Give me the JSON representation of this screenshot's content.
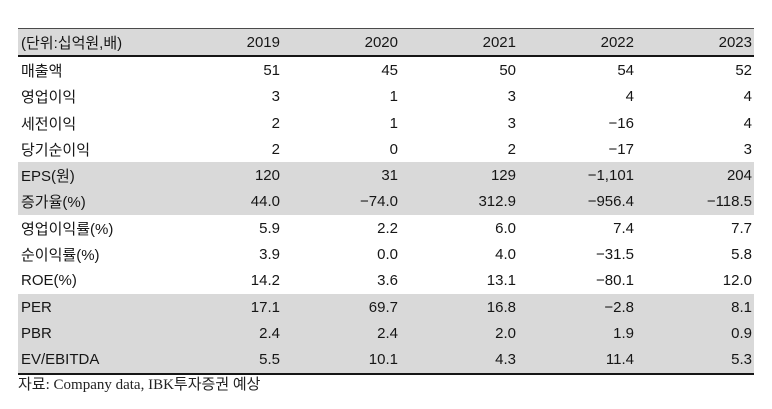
{
  "table": {
    "unit_label": "(단위:십억원,배)",
    "years": [
      "2019",
      "2020",
      "2021",
      "2022",
      "2023"
    ],
    "rows": [
      {
        "label": "매출액",
        "values": [
          "51",
          "45",
          "50",
          "54",
          "52"
        ]
      },
      {
        "label": "영업이익",
        "values": [
          "3",
          "1",
          "3",
          "4",
          "4"
        ]
      },
      {
        "label": "세전이익",
        "values": [
          "2",
          "1",
          "3",
          "−16",
          "4"
        ]
      },
      {
        "label": "당기순이익",
        "values": [
          "2",
          "0",
          "2",
          "−17",
          "3"
        ]
      },
      {
        "label": "EPS(원)",
        "values": [
          "120",
          "31",
          "129",
          "−1,101",
          "204"
        ]
      },
      {
        "label": "증가율(%)",
        "values": [
          "44.0",
          "−74.0",
          "312.9",
          "−956.4",
          "−118.5"
        ]
      },
      {
        "label": "영업이익률(%)",
        "values": [
          "5.9",
          "2.2",
          "6.0",
          "7.4",
          "7.7"
        ]
      },
      {
        "label": "순이익률(%)",
        "values": [
          "3.9",
          "0.0",
          "4.0",
          "−31.5",
          "5.8"
        ]
      },
      {
        "label": "ROE(%)",
        "values": [
          "14.2",
          "3.6",
          "13.1",
          "−80.1",
          "12.0"
        ]
      },
      {
        "label": "PER",
        "values": [
          "17.1",
          "69.7",
          "16.8",
          "−2.8",
          "8.1"
        ]
      },
      {
        "label": "PBR",
        "values": [
          "2.4",
          "2.4",
          "2.0",
          "1.9",
          "0.9"
        ]
      },
      {
        "label": "EV/EBITDA",
        "values": [
          "5.5",
          "10.1",
          "4.3",
          "11.4",
          "5.3"
        ]
      }
    ],
    "footer": "자료: Company data, IBK투자증권 예상"
  },
  "colors": {
    "shaded_row_bg": "#d9d9d9",
    "rule_dark": "#161616",
    "text": "#161616"
  }
}
